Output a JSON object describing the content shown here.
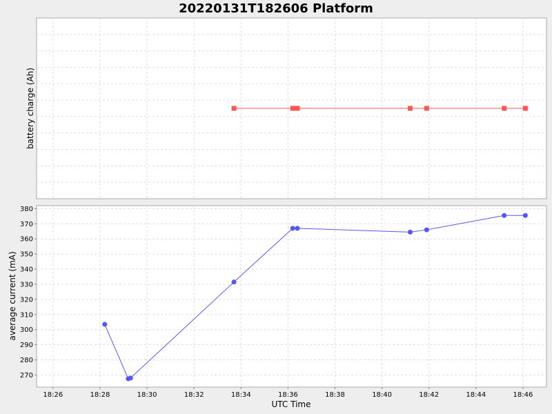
{
  "chart_data": {
    "type": "line",
    "title": "20220131T182606 Platform",
    "xlabel": "UTC Time",
    "x_tick_labels": [
      "18:26",
      "18:28",
      "18:30",
      "18:32",
      "18:34",
      "18:36",
      "18:38",
      "18:40",
      "18:42",
      "18:44",
      "18:46"
    ],
    "xlim": [
      "18:25:18",
      "18:47:00"
    ],
    "grid": true,
    "panels": [
      {
        "ylabel": "battery charge (Ah)",
        "y_tick_labels": [],
        "series": [
          {
            "color": "#ff5555",
            "marker": "square",
            "x": [
              "18:33:42",
              "18:36:12",
              "18:36:24",
              "18:41:12",
              "18:41:54",
              "18:45:12",
              "18:46:06"
            ],
            "y": [
              0,
              0,
              0,
              0,
              0,
              0,
              0
            ]
          }
        ]
      },
      {
        "ylabel": "average current (mA)",
        "ylim": [
          262,
          382
        ],
        "y_tick_labels": [
          "270",
          "280",
          "290",
          "300",
          "310",
          "320",
          "330",
          "340",
          "350",
          "360",
          "370",
          "380"
        ],
        "series": [
          {
            "color": "#5555ff",
            "marker": "circle",
            "x": [
              "18:28:12",
              "18:29:12",
              "18:29:18",
              "18:33:42",
              "18:36:12",
              "18:36:24",
              "18:41:12",
              "18:41:54",
              "18:45:12",
              "18:46:06"
            ],
            "y": [
              303.5,
              267.5,
              268,
              331.5,
              367,
              367,
              364.5,
              366,
              375.5,
              375.5
            ]
          }
        ]
      }
    ]
  }
}
